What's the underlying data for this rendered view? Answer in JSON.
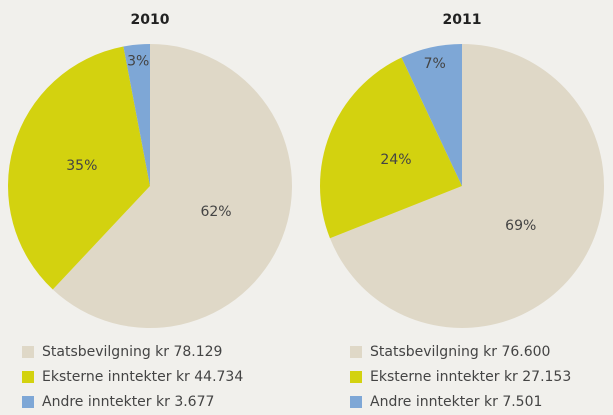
{
  "chart_data": [
    {
      "type": "pie",
      "title": "2010",
      "categories": [
        "Statsbevilgning kr 78.129",
        "Eksterne inntekter kr 44.734",
        "Andre inntekter kr 3.677"
      ],
      "values": [
        62,
        35,
        3
      ],
      "value_labels": [
        "62%",
        "35%",
        "3%"
      ],
      "colors": [
        "#dfd8c7",
        "#d3d20f",
        "#7ea7d6"
      ]
    },
    {
      "type": "pie",
      "title": "2011",
      "categories": [
        "Statsbevilgning kr 76.600",
        "Eksterne inntekter kr 27.153",
        "Andre inntekter kr 7.501"
      ],
      "values": [
        69,
        24,
        7
      ],
      "value_labels": [
        "69%",
        "24%",
        "7%"
      ],
      "colors": [
        "#dfd8c7",
        "#d3d20f",
        "#7ea7d6"
      ]
    }
  ]
}
